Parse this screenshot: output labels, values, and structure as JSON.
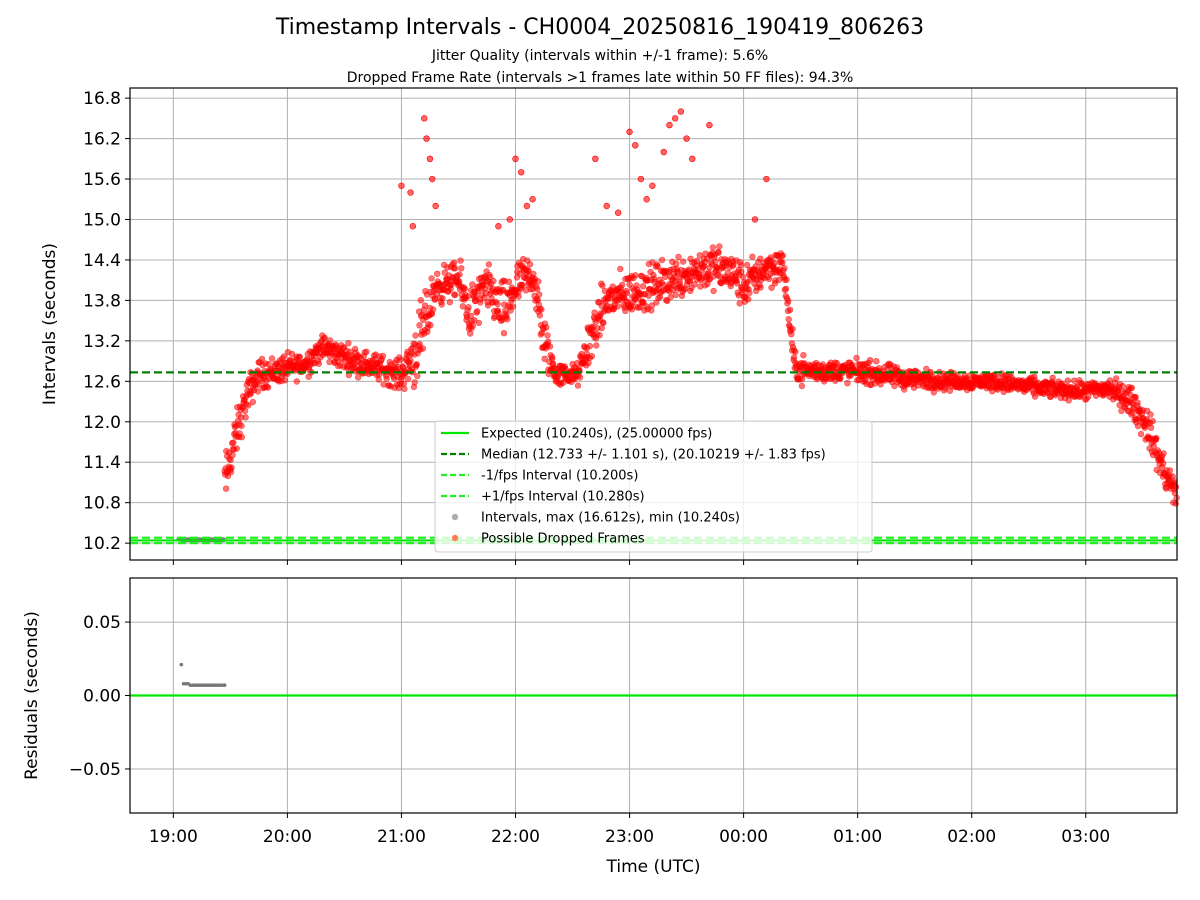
{
  "title": "Timestamp Intervals - CH0004_20250816_190419_806263",
  "subtitle_1": "Jitter Quality (intervals within +/-1 frame): 5.6%",
  "subtitle_2": "Dropped Frame Rate (intervals >1 frames late within 50 FF files): 94.3%",
  "colors": {
    "expected": "#00e600",
    "median": "#008000",
    "fps_lines": "#22ee22",
    "intervals": "#a0a0a0",
    "dropped": "#ff0000",
    "residual_points": "#777777"
  },
  "chart_data": [
    {
      "type": "scatter",
      "panel": "top",
      "ylabel": "Intervals (seconds)",
      "xlim": [
        18.62,
        27.8
      ],
      "ylim": [
        9.95,
        16.95
      ],
      "yticks": [
        10.2,
        10.8,
        11.4,
        12.0,
        12.6,
        13.2,
        13.8,
        14.4,
        15.0,
        15.6,
        16.2,
        16.8
      ],
      "ytick_labels": [
        "10.2",
        "10.8",
        "11.4",
        "12.0",
        "12.6",
        "13.2",
        "13.8",
        "14.4",
        "15.0",
        "15.6",
        "16.2",
        "16.8"
      ],
      "xticks": [
        19,
        20,
        21,
        22,
        23,
        24,
        25,
        26,
        27
      ],
      "grid": true,
      "legend_position": "lower-center",
      "reference_lines": [
        {
          "name": "Expected (10.240s), (25.00000 fps)",
          "y": 10.24,
          "style": "solid"
        },
        {
          "name": "Median (12.733 +/- 1.101 s), (20.10219 +/- 1.83 fps)",
          "y": 12.733,
          "style": "dashed"
        },
        {
          "name": "-1/fps Interval (10.200s)",
          "y": 10.2,
          "style": "dashed"
        },
        {
          "name": "+1/fps Interval (10.280s)",
          "y": 10.28,
          "style": "dashed"
        }
      ],
      "series": [
        {
          "name": "Intervals, max (16.612s), min (10.240s)",
          "marker": "gray circle",
          "x": [
            19.05,
            19.08,
            19.11,
            19.14,
            19.17,
            19.2,
            19.23,
            19.26,
            19.29,
            19.32,
            19.35,
            19.38,
            19.41,
            19.44
          ],
          "y": [
            10.26,
            10.25,
            10.25,
            10.25,
            10.25,
            10.25,
            10.25,
            10.25,
            10.25,
            10.25,
            10.25,
            10.25,
            10.25,
            10.25
          ]
        },
        {
          "name": "Possible Dropped Frames",
          "marker": "red circle",
          "trend": {
            "x": [
              19.45,
              19.55,
              19.65,
              19.75,
              19.9,
              20.0,
              20.15,
              20.3,
              20.45,
              20.6,
              20.8,
              21.0,
              21.15,
              21.3,
              21.5,
              21.6,
              21.75,
              21.9,
              22.0,
              22.15,
              22.25,
              22.35,
              22.55,
              22.65,
              22.8,
              23.0,
              23.2,
              23.35,
              23.5,
              23.7,
              23.9,
              24.0,
              24.2,
              24.35,
              24.45,
              24.6,
              25.0,
              25.4,
              25.8,
              26.2,
              26.6,
              27.0,
              27.2,
              27.4,
              27.55,
              27.7,
              27.8
            ],
            "y": [
              11.1,
              11.8,
              12.4,
              12.7,
              12.75,
              12.8,
              12.85,
              13.1,
              13.0,
              12.9,
              12.8,
              12.7,
              13.1,
              14.0,
              14.1,
              13.6,
              14.0,
              13.6,
              14.0,
              14.2,
              13.2,
              12.7,
              12.7,
              13.2,
              13.8,
              13.9,
              14.0,
              14.1,
              14.2,
              14.3,
              14.2,
              14.0,
              14.3,
              14.3,
              12.8,
              12.75,
              12.75,
              12.65,
              12.6,
              12.6,
              12.5,
              12.45,
              12.5,
              12.3,
              11.9,
              11.2,
              10.9
            ],
            "spread": [
              0.35,
              0.3,
              0.25,
              0.2,
              0.2,
              0.18,
              0.18,
              0.18,
              0.18,
              0.18,
              0.18,
              0.2,
              0.5,
              0.25,
              0.25,
              0.4,
              0.3,
              0.4,
              0.3,
              0.3,
              0.4,
              0.15,
              0.15,
              0.35,
              0.3,
              0.3,
              0.3,
              0.3,
              0.3,
              0.3,
              0.3,
              0.3,
              0.25,
              0.25,
              0.2,
              0.15,
              0.15,
              0.15,
              0.12,
              0.12,
              0.12,
              0.12,
              0.15,
              0.2,
              0.25,
              0.25,
              0.2
            ]
          },
          "outliers": {
            "x": [
              21.2,
              21.22,
              21.25,
              21.27,
              21.3,
              21.08,
              21.0,
              21.1,
              22.0,
              22.05,
              22.1,
              22.15,
              23.0,
              23.05,
              23.1,
              23.15,
              23.3,
              23.35,
              23.4,
              23.45,
              23.5,
              23.55,
              23.7,
              23.2,
              22.8,
              22.9,
              24.2,
              24.1,
              21.85,
              21.95,
              22.7
            ],
            "y": [
              16.5,
              16.2,
              15.9,
              15.6,
              15.2,
              15.4,
              15.5,
              14.9,
              15.9,
              15.7,
              15.2,
              15.3,
              16.3,
              16.1,
              15.6,
              15.3,
              16.0,
              16.4,
              16.5,
              16.6,
              16.2,
              15.9,
              16.4,
              15.5,
              15.2,
              15.1,
              15.6,
              15.0,
              14.9,
              15.0,
              15.9
            ]
          }
        }
      ]
    },
    {
      "type": "scatter",
      "panel": "bottom",
      "ylabel": "Residuals (seconds)",
      "xlabel": "Time (UTC)",
      "xlim": [
        18.62,
        27.8
      ],
      "ylim": [
        -0.08,
        0.08
      ],
      "yticks": [
        -0.05,
        0.0,
        0.05
      ],
      "ytick_labels": [
        "−0.05",
        "0.00",
        "0.05"
      ],
      "xticks": [
        19,
        20,
        21,
        22,
        23,
        24,
        25,
        26,
        27
      ],
      "xtick_labels": [
        "19:00",
        "20:00",
        "21:00",
        "22:00",
        "23:00",
        "00:00",
        "01:00",
        "02:00",
        "03:00"
      ],
      "grid": true,
      "reference_lines": [
        {
          "y": 0.0,
          "style": "solid"
        }
      ],
      "series": [
        {
          "marker": "gray dot",
          "x": [
            19.07,
            19.09,
            19.11,
            19.13,
            19.15,
            19.17,
            19.19,
            19.21,
            19.23,
            19.25,
            19.27,
            19.29,
            19.31,
            19.33,
            19.35,
            19.37,
            19.39,
            19.41,
            19.43,
            19.45
          ],
          "y": [
            0.021,
            0.008,
            0.008,
            0.008,
            0.007,
            0.007,
            0.007,
            0.007,
            0.007,
            0.007,
            0.007,
            0.007,
            0.007,
            0.007,
            0.007,
            0.007,
            0.007,
            0.007,
            0.007,
            0.007
          ]
        }
      ]
    }
  ]
}
